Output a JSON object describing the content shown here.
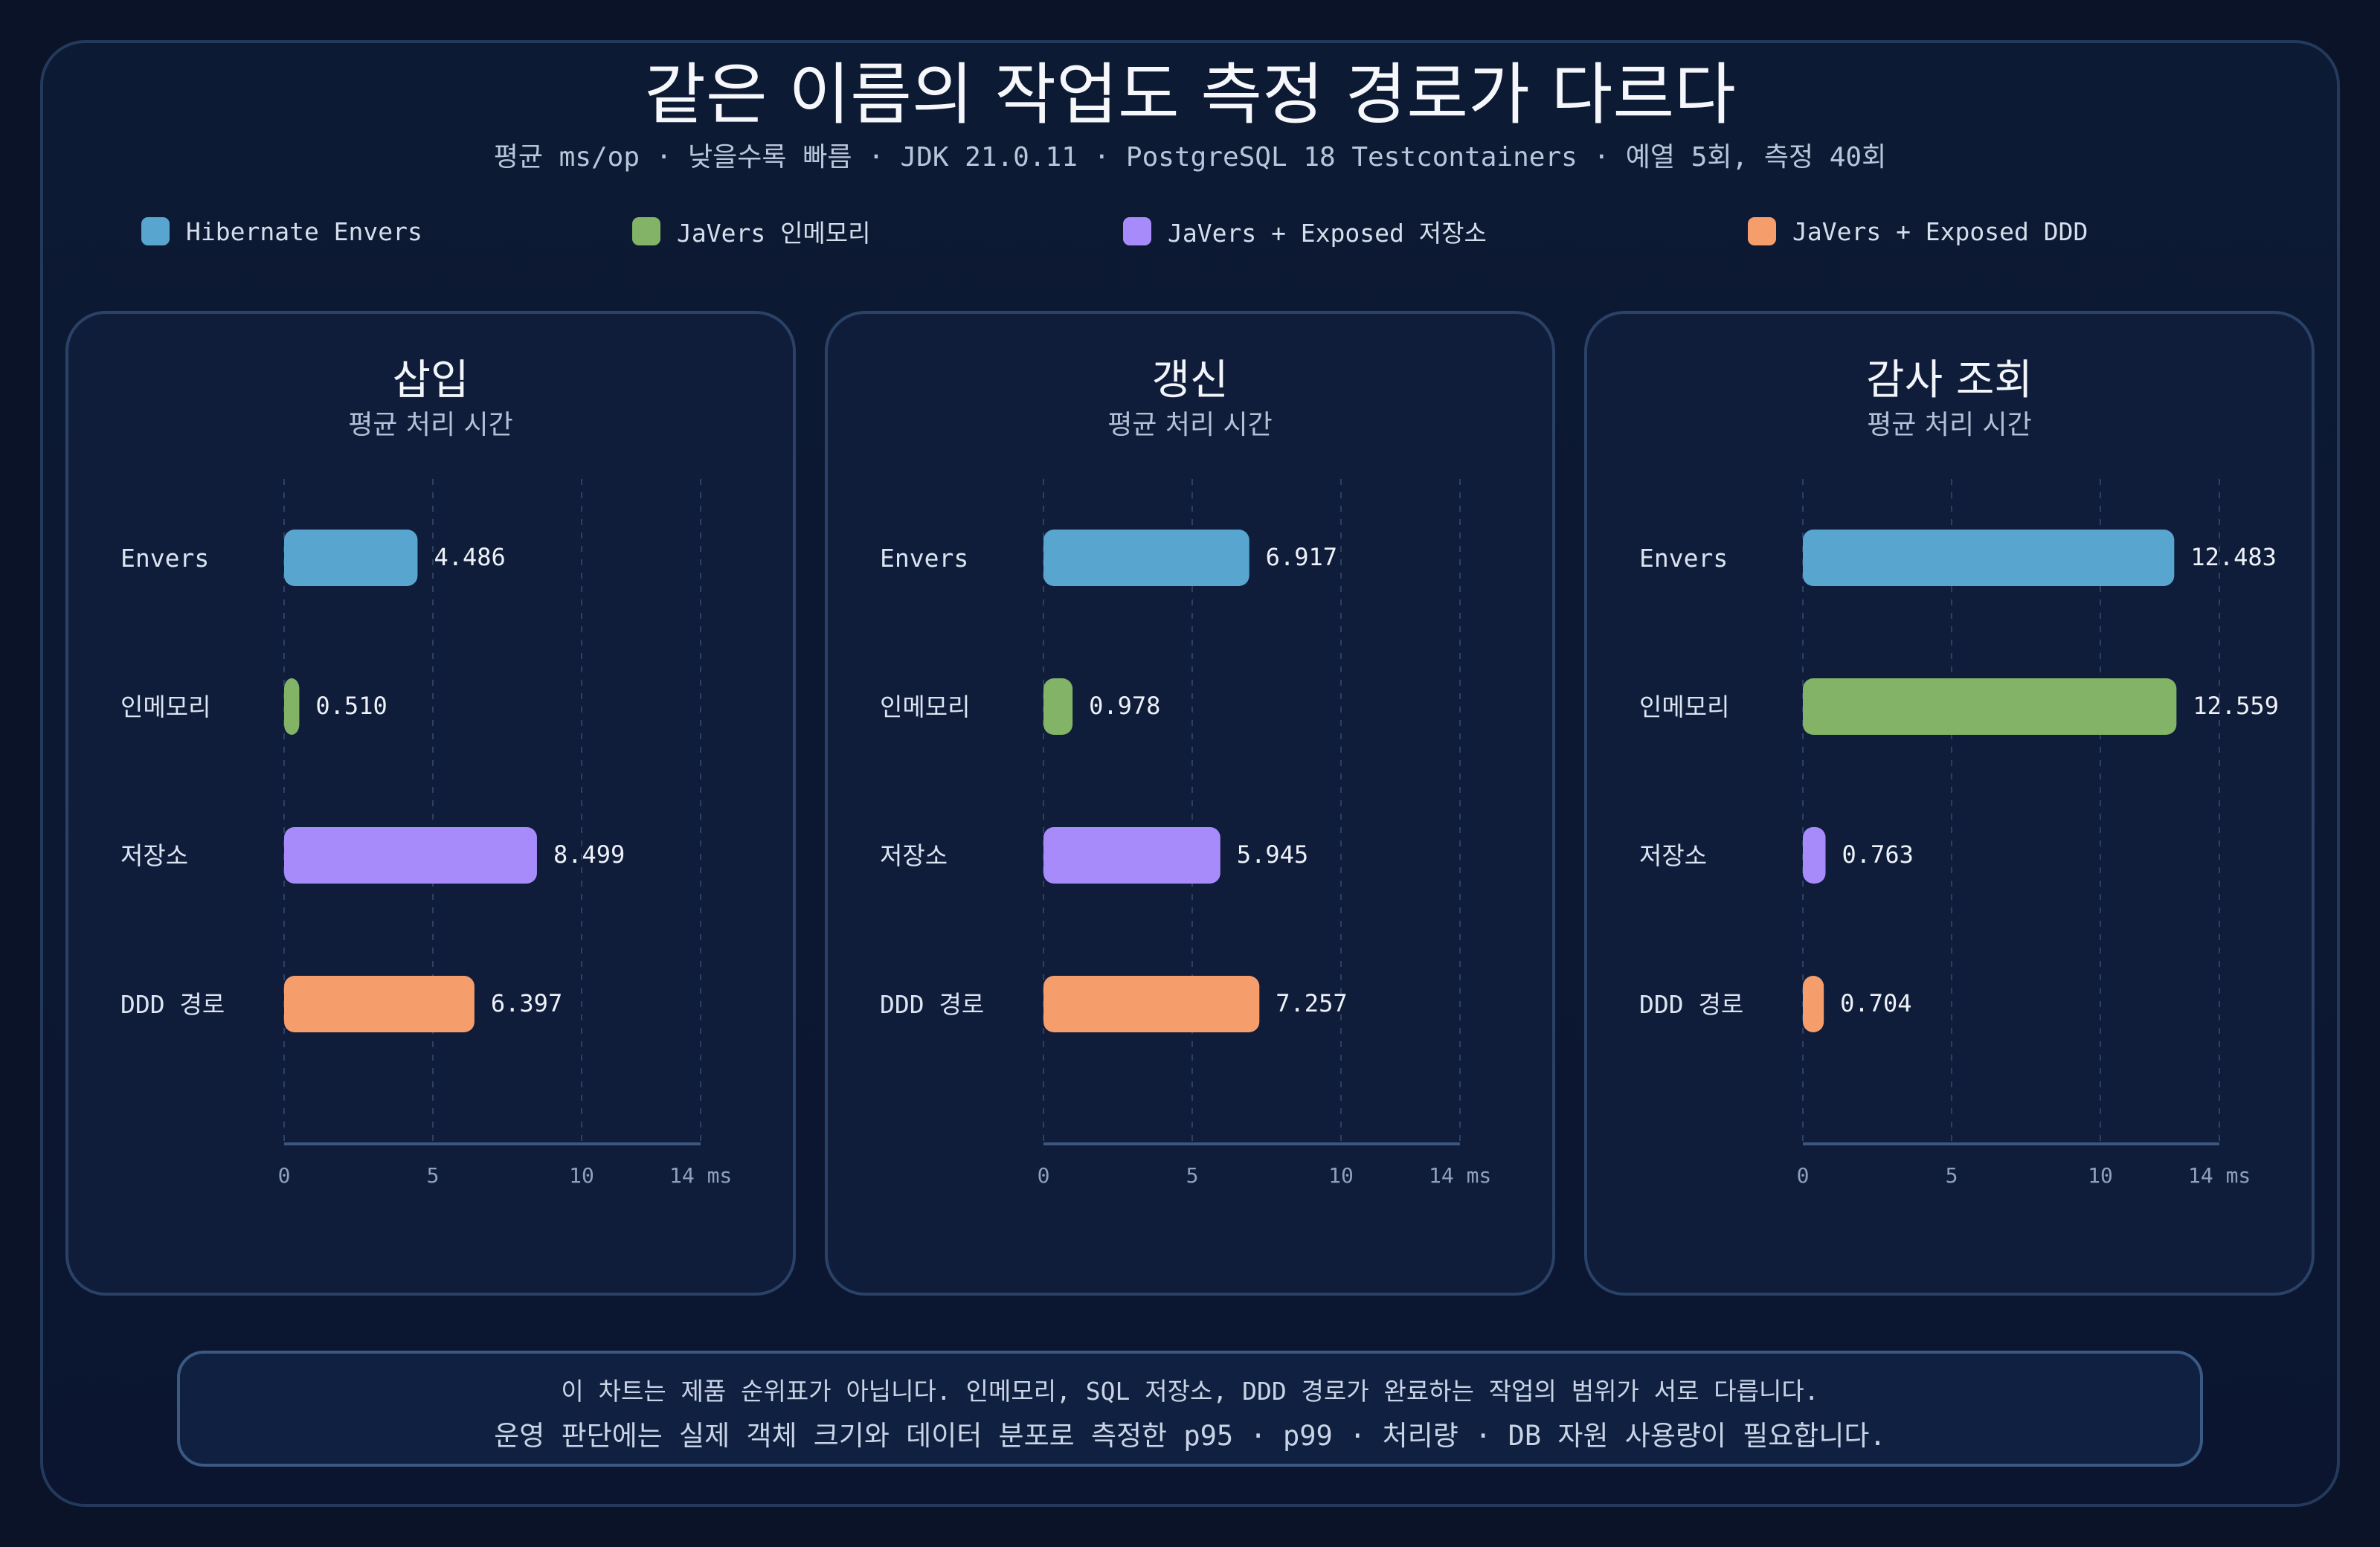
{
  "title": "같은 이름의 작업도 측정 경로가 다르다",
  "subtitle": "평균 ms/op · 낮을수록 빠름 · JDK 21.0.11 · PostgreSQL 18 Testcontainers · 예열 5회, 측정 40회",
  "legend": [
    {
      "label": "Hibernate Envers",
      "color": "#58a6cf"
    },
    {
      "label": "JaVers 인메모리",
      "color": "#82b366"
    },
    {
      "label": "JaVers + Exposed 저장소",
      "color": "#a78bfa"
    },
    {
      "label": "JaVers + Exposed DDD",
      "color": "#f69d6c"
    }
  ],
  "note": {
    "line1": "이 차트는 제품 순위표가 아닙니다. 인메모리, SQL 저장소, DDD 경로가 완료하는 작업의 범위가 서로 다릅니다.",
    "line2": "운영 판단에는 실제 객체 크기와 데이터 분포로 측정한 p95 · p99 · 처리량 · DB 자원 사용량이 필요합니다."
  },
  "chart_data": [
    {
      "type": "bar",
      "orientation": "horizontal",
      "title": "삽입",
      "subtitle": "평균 처리 시간",
      "categories": [
        "Envers",
        "인메모리",
        "저장소",
        "DDD 경로"
      ],
      "values": [
        4.486,
        0.51,
        8.499,
        6.397
      ],
      "value_labels": [
        "4.486",
        "0.510",
        "8.499",
        "6.397"
      ],
      "colors": [
        "#58a6cf",
        "#82b366",
        "#a78bfa",
        "#f69d6c"
      ],
      "xlim": [
        0,
        14
      ],
      "xticks": [
        0,
        5,
        10,
        14
      ],
      "xtick_labels": [
        "0",
        "5",
        "10",
        "14 ms"
      ],
      "grid": true
    },
    {
      "type": "bar",
      "orientation": "horizontal",
      "title": "갱신",
      "subtitle": "평균 처리 시간",
      "categories": [
        "Envers",
        "인메모리",
        "저장소",
        "DDD 경로"
      ],
      "values": [
        6.917,
        0.978,
        5.945,
        7.257
      ],
      "value_labels": [
        "6.917",
        "0.978",
        "5.945",
        "7.257"
      ],
      "colors": [
        "#58a6cf",
        "#82b366",
        "#a78bfa",
        "#f69d6c"
      ],
      "xlim": [
        0,
        14
      ],
      "xticks": [
        0,
        5,
        10,
        14
      ],
      "xtick_labels": [
        "0",
        "5",
        "10",
        "14 ms"
      ],
      "grid": true
    },
    {
      "type": "bar",
      "orientation": "horizontal",
      "title": "감사 조회",
      "subtitle": "평균 처리 시간",
      "categories": [
        "Envers",
        "인메모리",
        "저장소",
        "DDD 경로"
      ],
      "values": [
        12.483,
        12.559,
        0.763,
        0.704
      ],
      "value_labels": [
        "12.483",
        "12.559",
        "0.763",
        "0.704"
      ],
      "colors": [
        "#58a6cf",
        "#82b366",
        "#a78bfa",
        "#f69d6c"
      ],
      "xlim": [
        0,
        14
      ],
      "xticks": [
        0,
        5,
        10,
        14
      ],
      "xtick_labels": [
        "0",
        "5",
        "10",
        "14 ms"
      ],
      "grid": true
    }
  ]
}
